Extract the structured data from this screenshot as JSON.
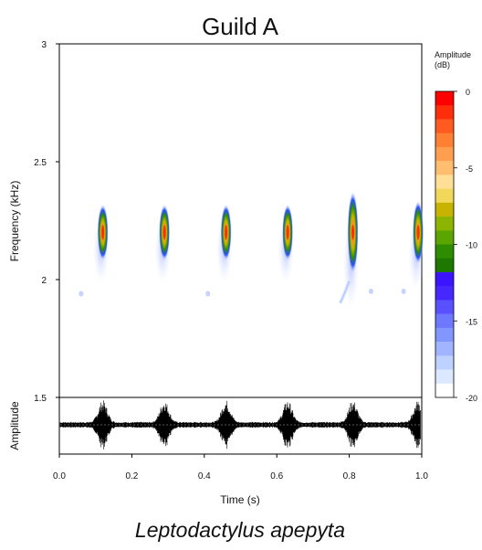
{
  "chart_data": {
    "type": "spectrogram",
    "title": "Guild A",
    "subtitle": "Leptodactylus apepyta",
    "xlabel": "Time (s)",
    "ylabel": "Frequency (kHz)",
    "waveform_label": "Amplitude",
    "xlim": [
      0.0,
      1.0
    ],
    "ylim": [
      1.5,
      3.0
    ],
    "x_ticks": [
      "0.0",
      "0.2",
      "0.4",
      "0.6",
      "0.8",
      "1.0"
    ],
    "y_ticks": [
      "1.5",
      "2",
      "2.5",
      "3"
    ],
    "colorbar": {
      "title_line1": "Amplitude",
      "title_line2": "(dB)",
      "range": [
        -20,
        0
      ],
      "ticks": [
        "0",
        "-5",
        "-10",
        "-15",
        "-20"
      ],
      "colors": [
        "#ff0000",
        "#ff2d0a",
        "#ff5a1f",
        "#ff7f33",
        "#ff9e4f",
        "#ffbd70",
        "#ffde96",
        "#f2d85a",
        "#c8b400",
        "#8cb400",
        "#5aa500",
        "#2d8c00",
        "#1e7800",
        "#3c14ff",
        "#4628ff",
        "#5a50ff",
        "#6e78ff",
        "#8296ff",
        "#a0b4ff",
        "#bed2ff",
        "#dce8ff",
        "#ffffff"
      ]
    },
    "notes": [
      {
        "time_s": 0.12,
        "center_khz": 2.2,
        "low_khz": 2.08,
        "high_khz": 2.32
      },
      {
        "time_s": 0.29,
        "center_khz": 2.2,
        "low_khz": 2.08,
        "high_khz": 2.32
      },
      {
        "time_s": 0.46,
        "center_khz": 2.2,
        "low_khz": 2.08,
        "high_khz": 2.32
      },
      {
        "time_s": 0.63,
        "center_khz": 2.2,
        "low_khz": 2.08,
        "high_khz": 2.32
      },
      {
        "time_s": 0.81,
        "center_khz": 2.2,
        "low_khz": 1.97,
        "high_khz": 2.32
      },
      {
        "time_s": 0.99,
        "center_khz": 2.2,
        "low_khz": 2.05,
        "high_khz": 2.32
      }
    ],
    "colors": {
      "hot": "#ff2a00",
      "mid": "#c8b400",
      "cool": "#2d8c00",
      "faint": "#6e78ff",
      "wave": "#000000"
    }
  }
}
